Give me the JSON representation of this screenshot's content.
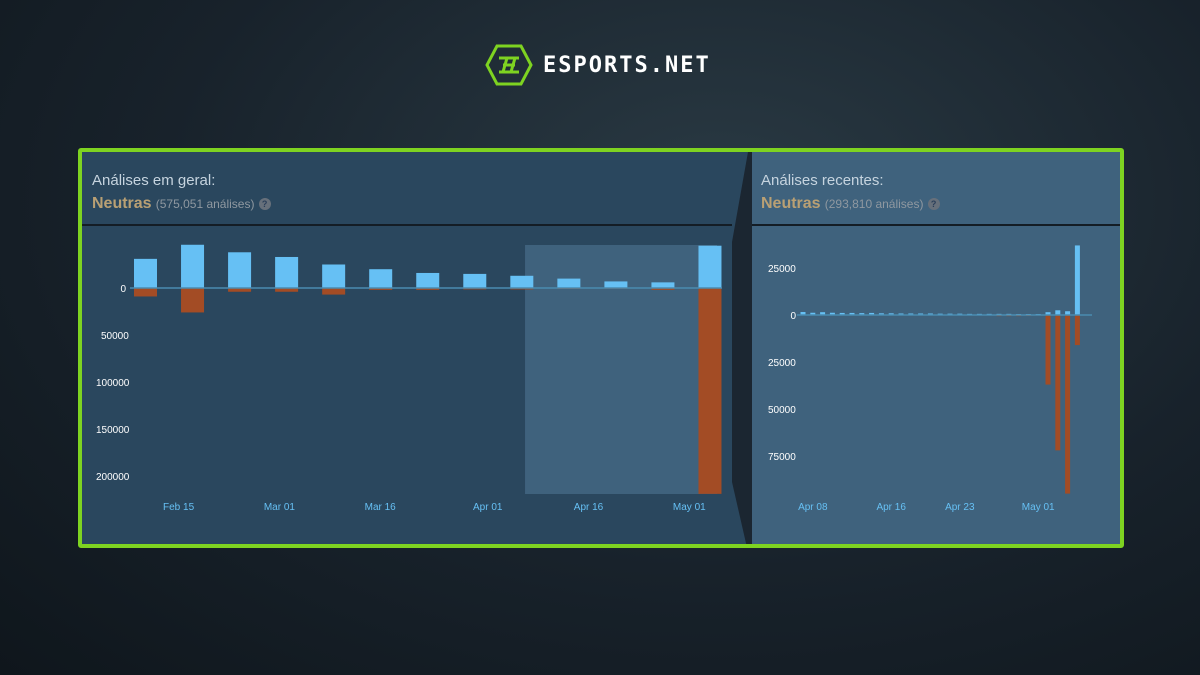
{
  "brand": {
    "name": "ESPORTS.NET",
    "accent": "#7ed321"
  },
  "overall": {
    "title": "Análises em geral:",
    "rating": "Neutras",
    "count": "(575,051 análises)",
    "help": "?"
  },
  "recent": {
    "title": "Análises recentes:",
    "rating": "Neutras",
    "count": "(293,810 análises)",
    "help": "?"
  },
  "colors": {
    "positive": "#66c0f4",
    "negative": "#a34c25",
    "rating": "#b9a074"
  },
  "chart_data": [
    {
      "type": "bar",
      "title": "",
      "ylim": [
        -220000,
        50000
      ],
      "yticks": [
        {
          "v": 0,
          "label": "0"
        },
        {
          "v": -50000,
          "label": "50000"
        },
        {
          "v": -100000,
          "label": "100000"
        },
        {
          "v": -150000,
          "label": "150000"
        },
        {
          "v": -200000,
          "label": "200000"
        }
      ],
      "xticks": [
        {
          "date": "2024-02-15",
          "label": "Feb 15"
        },
        {
          "date": "2024-03-01",
          "label": "Mar 01"
        },
        {
          "date": "2024-03-16",
          "label": "Mar 16"
        },
        {
          "date": "2024-04-01",
          "label": "Apr 01"
        },
        {
          "date": "2024-04-16",
          "label": "Apr 16"
        },
        {
          "date": "2024-05-01",
          "label": "May 01"
        }
      ],
      "x": [
        "2024-02-10",
        "2024-02-17",
        "2024-02-24",
        "2024-03-02",
        "2024-03-09",
        "2024-03-16",
        "2024-03-23",
        "2024-03-30",
        "2024-04-06",
        "2024-04-13",
        "2024-04-20",
        "2024-04-27",
        "2024-05-04"
      ],
      "series": [
        {
          "values": [
            31000,
            46000,
            38000,
            33000,
            25000,
            20000,
            16000,
            15000,
            13000,
            10000,
            7000,
            6000,
            45000
          ]
        },
        {
          "values": [
            -9000,
            -26000,
            -4000,
            -4000,
            -7000,
            -2000,
            -2000,
            -1500,
            -1500,
            -1000,
            -800,
            -2000,
            -219000
          ]
        }
      ],
      "highlight": [
        "2024-04-07",
        "2024-05-06"
      ]
    },
    {
      "type": "bar",
      "title": "",
      "ylim": [
        -95000,
        37000
      ],
      "yticks": [
        {
          "v": 25000,
          "label": "25000"
        },
        {
          "v": 0,
          "label": "0"
        },
        {
          "v": -25000,
          "label": "25000"
        },
        {
          "v": -50000,
          "label": "50000"
        },
        {
          "v": -75000,
          "label": "75000"
        }
      ],
      "xticks": [
        {
          "date": "2024-04-08",
          "label": "Apr 08"
        },
        {
          "date": "2024-04-16",
          "label": "Apr 16"
        },
        {
          "date": "2024-04-23",
          "label": "Apr 23"
        },
        {
          "date": "2024-05-01",
          "label": "May 01"
        }
      ],
      "start": "2024-04-07",
      "series": [
        {
          "values": [
            1600,
            1200,
            1500,
            1200,
            1100,
            1100,
            1000,
            1100,
            900,
            900,
            800,
            800,
            800,
            800,
            700,
            700,
            700,
            600,
            600,
            600,
            600,
            600,
            500,
            500,
            500,
            1500,
            2500,
            2000,
            37000,
            37000
          ]
        },
        {
          "values": [
            -200,
            -200,
            -200,
            -200,
            -200,
            -200,
            -200,
            -200,
            -200,
            -200,
            -200,
            -200,
            -200,
            -200,
            -200,
            -200,
            -200,
            -200,
            -200,
            -200,
            -600,
            -600,
            -600,
            -500,
            -300,
            -37000,
            -72000,
            -95000,
            -16000,
            -16000
          ]
        }
      ]
    }
  ]
}
